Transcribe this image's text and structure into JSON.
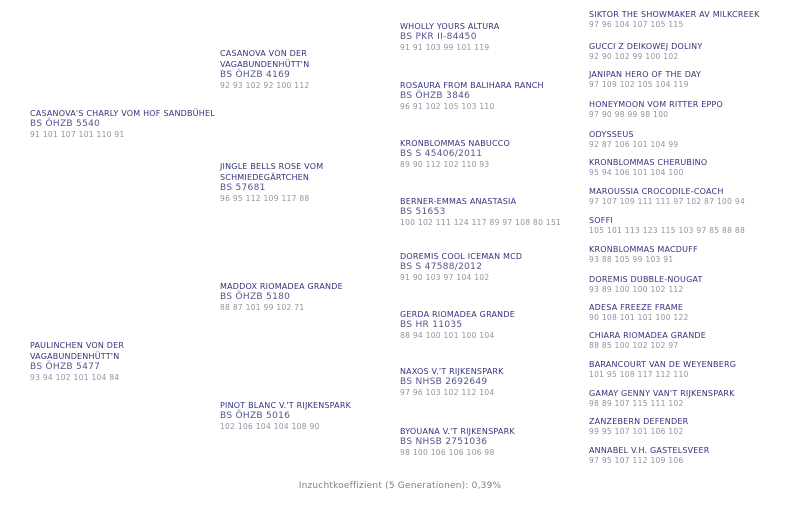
{
  "pedigree": {
    "generations": [
      {
        "name": "generation-1",
        "entries": [
          {
            "name": "CASANOVA'S CHARLY VOM HOF SANDBÜHEL",
            "reg": "BS ÖHZB 5540",
            "scores": "91 101 107 101 110 91"
          },
          {
            "name": "PAULINCHEN VON DER VAGABUNDENHÜTT'N",
            "reg": "BS ÖHZB 5477",
            "scores": "93 94 102 101 104 84"
          }
        ]
      },
      {
        "name": "generation-2",
        "entries": [
          {
            "name": "CASANOVA VON DER VAGABUNDENHÜTT'N",
            "reg": "BS ÖHZB 4169",
            "scores": "92 93 102 92 100 112"
          },
          {
            "name": "JINGLE BELLS ROSE VOM SCHMIEDEGÄRTCHEN",
            "reg": "BS 57681",
            "scores": "96 95 112 109 117 88"
          },
          {
            "name": "MADDOX RIOMADEA GRANDE",
            "reg": "BS ÖHZB 5180",
            "scores": "88 87 101 99 102 71"
          },
          {
            "name": "PINOT BLANC V.'T RIJKENSPARK",
            "reg": "BS ÖHZB 5016",
            "scores": "102 106 104 104 108 90"
          }
        ]
      },
      {
        "name": "generation-3",
        "entries": [
          {
            "name": "WHOLLY YOURS ALTURA",
            "reg": "BS PKR II-84450",
            "scores": "91 91 103 99 101 119"
          },
          {
            "name": "ROSAURA FROM BALIHARA RANCH",
            "reg": "BS ÖHZB 3846",
            "scores": "96 91 102 105 103 110"
          },
          {
            "name": "KRONBLOMMAS NABUCCO",
            "reg": "BS S 45406/2011",
            "scores": "89 90 112 102 110 93"
          },
          {
            "name": "BERNER-EMMAS ANASTASIA",
            "reg": "BS 51653",
            "scores": "100 102 111 124 117 89 97 108 80 151"
          },
          {
            "name": "DOREMIS COOL ICEMAN MCD",
            "reg": "BS S 47588/2012",
            "scores": "91 90 103 97 104 102"
          },
          {
            "name": "GERDA RIOMADEA GRANDE",
            "reg": "BS HR 11035",
            "scores": "88 94 100 101 100 104"
          },
          {
            "name": "NAXOS V.'T RIJKENSPARK",
            "reg": "BS NHSB 2692649",
            "scores": "97 96 103 102 112 104"
          },
          {
            "name": "BYOUANA V.'T RIJKENSPARK",
            "reg": "BS NHSB 2751036",
            "scores": "98 100 106 106 106 98"
          }
        ]
      },
      {
        "name": "generation-4",
        "entries": [
          {
            "name": "SIKTOR THE SHOWMAKER AV MILKCREEK",
            "scores": "97 96 104 107 105 115"
          },
          {
            "name": "GUCCI Z DEIKOWEJ DOLINY",
            "scores": "92 90 102 99 100 102"
          },
          {
            "name": "JANIPAN HERO OF THE DAY",
            "scores": "97 109 102 105 104 119"
          },
          {
            "name": "HONEYMOON VOM RITTER EPPO",
            "scores": "97 90 98 99 98 100"
          },
          {
            "name": "ODYSSEUS",
            "scores": "92 87 106 101 104 99"
          },
          {
            "name": "KRONBLOMMAS CHERUBINO",
            "scores": "95 94 106 101 104 100"
          },
          {
            "name": "MAROUSSIA CROCODILE-COACH",
            "scores": "97 107 109 111 111 97 102 87 100 94"
          },
          {
            "name": "SOFFI",
            "scores": "105 101 113 123 115 103 97 85 88 88"
          },
          {
            "name": "KRONBLOMMAS MACDUFF",
            "scores": "93 88 105 99 103 91"
          },
          {
            "name": "DOREMIS DUBBLE-NOUGAT",
            "scores": "93 89 100 100 102 112"
          },
          {
            "name": "ADESA FREEZE FRAME",
            "scores": "90 108 101 101 100 122"
          },
          {
            "name": "CHIARA RIOMADEA GRANDE",
            "scores": "88 85 100 102 102 97"
          },
          {
            "name": "BARANCOURT VAN DE WEYENBERG",
            "scores": "101 95 108 117 112 110"
          },
          {
            "name": "GAMAY GENNY VAN'T RIJKENSPARK",
            "scores": "98 89 107 115 111 102"
          },
          {
            "name": "ZANZEBERN DEFENDER",
            "scores": "99 95 107 101 106 102"
          },
          {
            "name": "ANNABEL V.H. GASTELSVEER",
            "scores": "97 95 107 112 109 106"
          }
        ]
      }
    ]
  },
  "footer": {
    "inbreeding_label": "Inzuchtkoeffizient (5 Generationen): 0,39%"
  },
  "colors": {
    "name_text": "#32327d",
    "reg_text": "#54548c",
    "score_text": "#9093a0",
    "footer_text": "#808080",
    "background": "#ffffff"
  }
}
